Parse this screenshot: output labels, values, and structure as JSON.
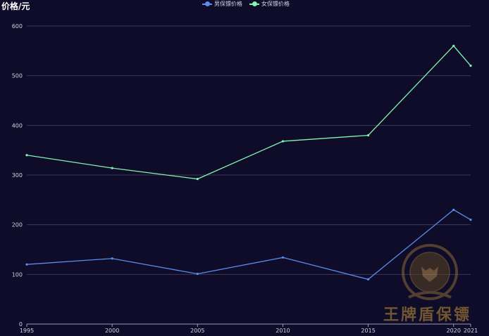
{
  "colors": {
    "background": "#0f0c29",
    "grid": "#3a3858",
    "axis": "#9a9cb8",
    "tick_text": "#cfd3e6",
    "series_male": "#5a8dee",
    "series_female": "#7ff5b0"
  },
  "chart_data": {
    "type": "line",
    "title": "",
    "ylabel": "价格/元",
    "xlabel": "",
    "x": [
      "1995",
      "2000",
      "2005",
      "2010",
      "2015",
      "2020",
      "2021"
    ],
    "ylim": [
      0,
      600
    ],
    "yticks": [
      "0",
      "100",
      "200",
      "300",
      "400",
      "500",
      "600"
    ],
    "grid": true,
    "legend_position": "top-center",
    "series": [
      {
        "name": "男保镖价格",
        "color": "#5a8dee",
        "values": [
          120,
          132,
          101,
          134,
          90,
          230,
          210
        ]
      },
      {
        "name": "女保镖价格",
        "color": "#7ff5b0",
        "values": [
          340,
          314,
          292,
          368,
          380,
          560,
          520
        ]
      }
    ]
  },
  "watermark": {
    "text": "王牌盾保镖",
    "icon": "tiger-emblem-icon"
  }
}
